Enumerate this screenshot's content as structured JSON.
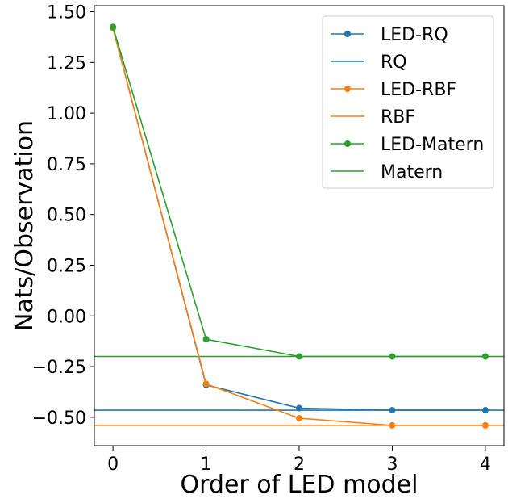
{
  "chart_data": {
    "type": "line",
    "title": "",
    "xlabel": "Order of LED model",
    "ylabel": "Nats/Observation",
    "x": [
      0,
      1,
      2,
      3,
      4
    ],
    "xlim": [
      -0.2,
      4.2
    ],
    "ylim": [
      -0.64,
      1.53
    ],
    "xticks": [
      "0",
      "1",
      "2",
      "3",
      "4"
    ],
    "yticks": [
      {
        "value": 1.5,
        "label": "1.50"
      },
      {
        "value": 1.25,
        "label": "1.25"
      },
      {
        "value": 1.0,
        "label": "1.00"
      },
      {
        "value": 0.75,
        "label": "0.75"
      },
      {
        "value": 0.5,
        "label": "0.50"
      },
      {
        "value": 0.25,
        "label": "0.25"
      },
      {
        "value": 0.0,
        "label": "0.00"
      },
      {
        "value": -0.25,
        "label": "−0.25"
      },
      {
        "value": -0.5,
        "label": "−0.50"
      }
    ],
    "grid": false,
    "legend_position": "top-right",
    "series": [
      {
        "name": "LED-RQ",
        "kind": "line-markers",
        "color": "#1f77b4",
        "values": [
          1.42,
          -0.34,
          -0.455,
          -0.465,
          -0.465
        ]
      },
      {
        "name": "RQ",
        "kind": "hline",
        "color": "#1f77b4",
        "value": -0.465
      },
      {
        "name": "LED-RBF",
        "kind": "line-markers",
        "color": "#ff7f0e",
        "values": [
          1.42,
          -0.335,
          -0.505,
          -0.54,
          -0.54
        ]
      },
      {
        "name": "RBF",
        "kind": "hline",
        "color": "#ff7f0e",
        "value": -0.54
      },
      {
        "name": "LED-Matern",
        "kind": "line-markers",
        "color": "#2ca02c",
        "values": [
          1.425,
          -0.115,
          -0.2,
          -0.2,
          -0.2
        ]
      },
      {
        "name": "Matern",
        "kind": "hline",
        "color": "#2ca02c",
        "value": -0.2
      }
    ]
  }
}
